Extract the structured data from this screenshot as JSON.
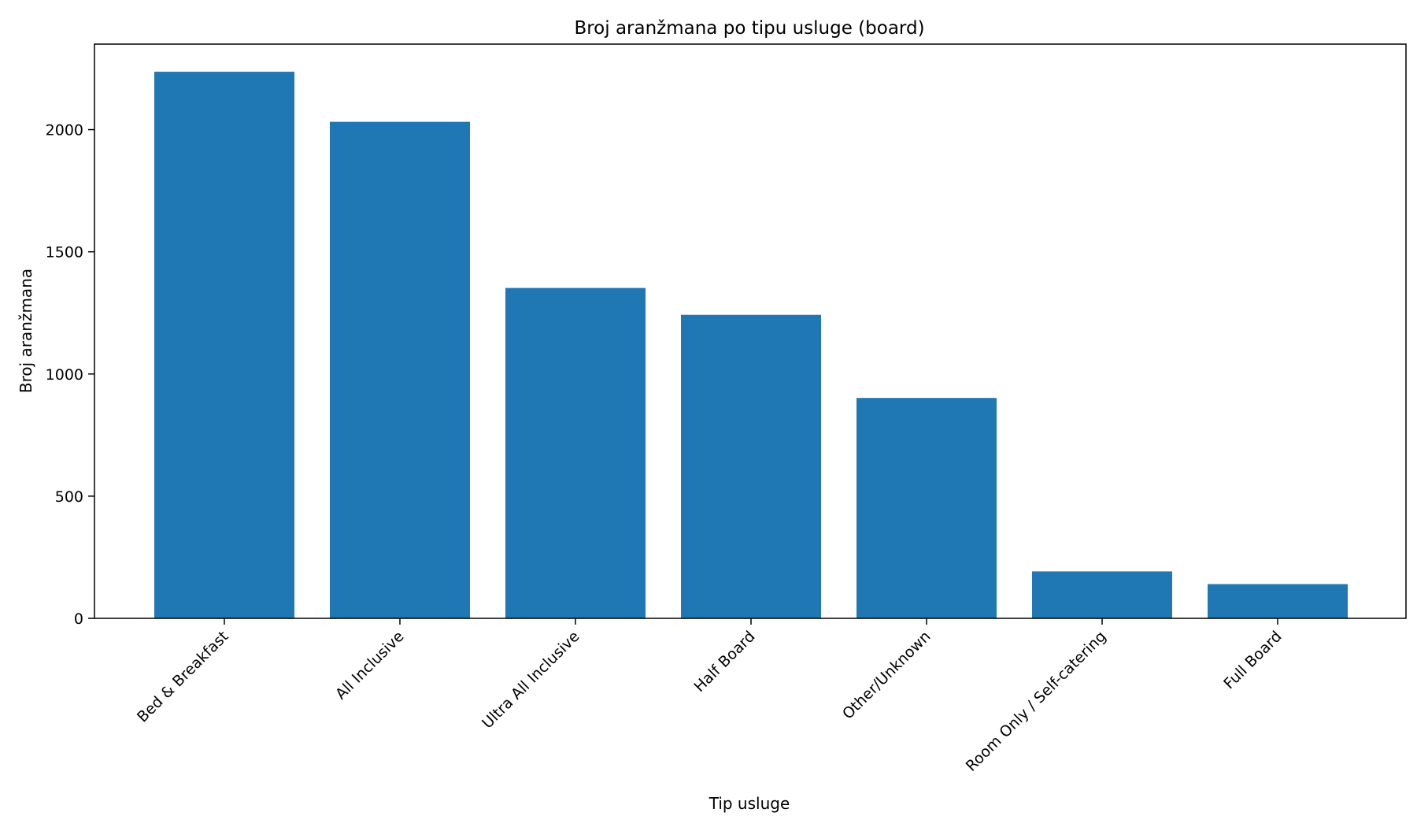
{
  "chart_data": {
    "type": "bar",
    "title": "Broj aranžmana po tipu usluge (board)",
    "xlabel": "Tip usluge",
    "ylabel": "Broj aranžmana",
    "categories": [
      "Bed & Breakfast",
      "All Inclusive",
      "Ultra All Inclusive",
      "Half Board",
      "Other/Unknown",
      "Room Only / Self-catering",
      "Full Board"
    ],
    "values": [
      2237,
      2032,
      1352,
      1242,
      902,
      192,
      140
    ],
    "ylim": [
      0,
      2350
    ],
    "yticks": [
      0,
      500,
      1000,
      1500,
      2000
    ],
    "ytick_labels": [
      "0",
      "500",
      "1000",
      "1500",
      "2000"
    ],
    "grid": false,
    "bar_color": "#1f77b4"
  }
}
